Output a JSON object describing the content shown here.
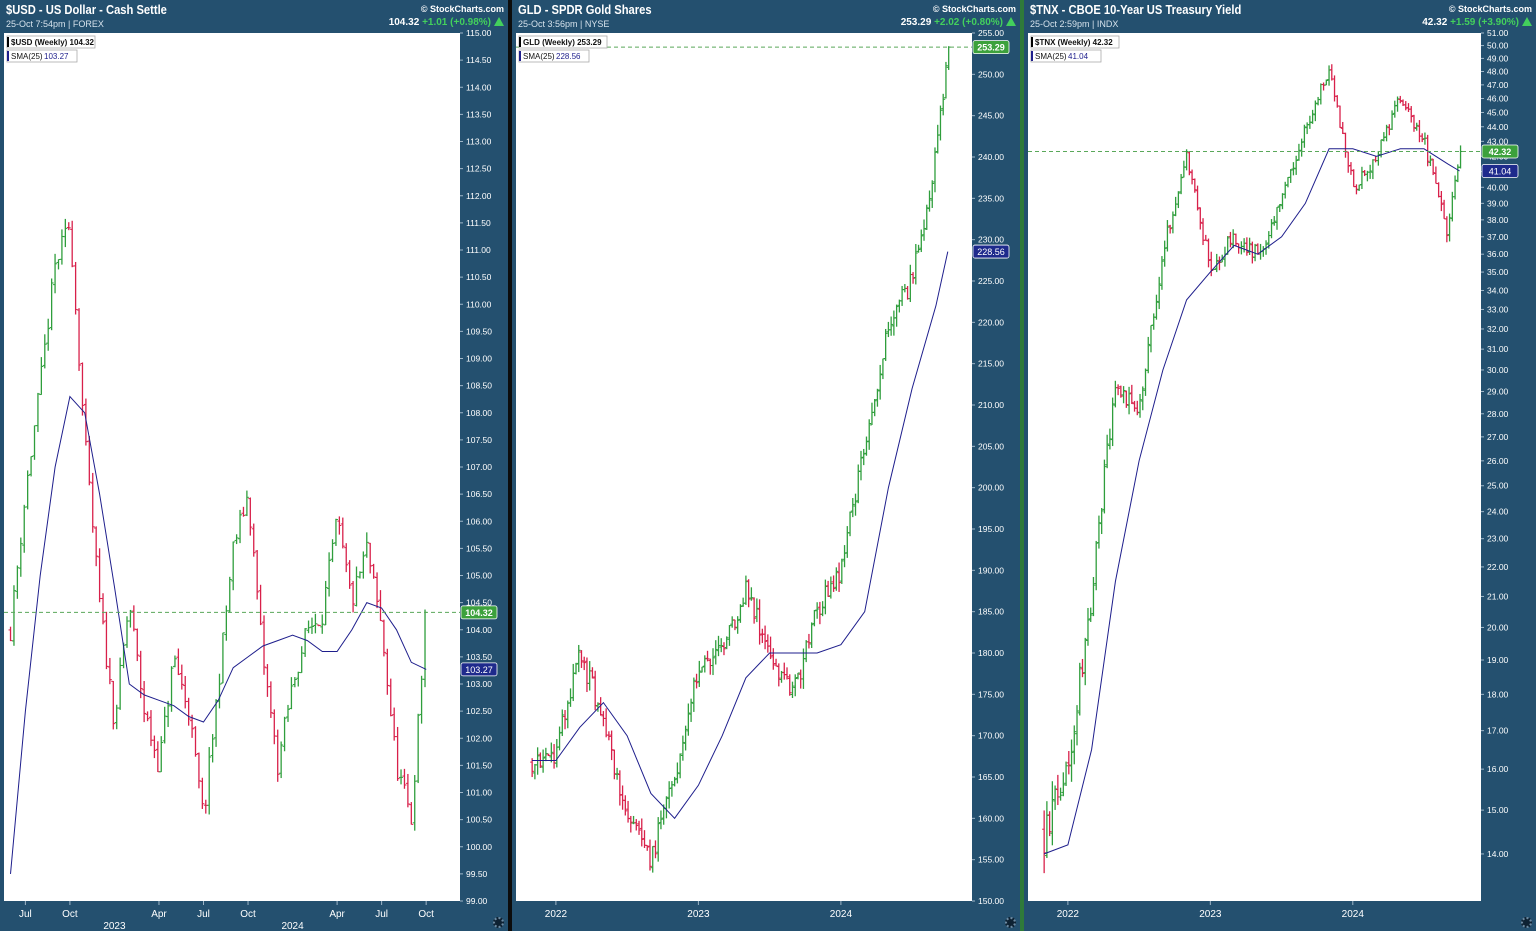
{
  "charts": [
    {
      "title": "$USD - US Dollar - Cash Settle",
      "subtitle": "25-Oct 7:54pm | FOREX",
      "brand": "© StockCharts.com",
      "last": "104.32",
      "change": "+1.01 (+0.98%)",
      "legend_price": "$USD (Weekly) 104.32",
      "legend_sma_label": "SMA(25)",
      "legend_sma_value": "103.27",
      "price_tag": "104.32",
      "sma_tag": "103.27",
      "colors": {
        "up": "#2f9e3c",
        "down": "#d8204a",
        "sma": "#1e1e8c",
        "price_tag": "#3ca13c",
        "sma_tag": "#1e2a8c"
      }
    },
    {
      "title": "GLD - SPDR Gold Shares",
      "subtitle": "25-Oct 3:56pm | NYSE",
      "brand": "© StockCharts.com",
      "last": "253.29",
      "change": "+2.02 (+0.80%)",
      "legend_price": "GLD (Weekly) 253.29",
      "legend_sma_label": "SMA(25)",
      "legend_sma_value": "228.56",
      "price_tag": "253.29",
      "sma_tag": "228.56",
      "colors": {
        "up": "#2f9e3c",
        "down": "#d8204a",
        "sma": "#1e1e8c",
        "price_tag": "#3ca13c",
        "sma_tag": "#1e2a8c"
      }
    },
    {
      "title": "$TNX - CBOE 10-Year US Treasury Yield",
      "subtitle": "25-Oct 2:59pm | INDX",
      "brand": "© StockCharts.com",
      "last": "42.32",
      "change": "+1.59 (+3.90%)",
      "legend_price": "$TNX (Weekly) 42.32",
      "legend_sma_label": "SMA(25)",
      "legend_sma_value": "41.04",
      "price_tag": "42.32",
      "sma_tag": "41.04",
      "colors": {
        "up": "#2f9e3c",
        "down": "#d8204a",
        "sma": "#1e1e8c",
        "price_tag": "#3ca13c",
        "sma_tag": "#1e2a8c"
      }
    }
  ],
  "chart_data": [
    {
      "type": "line",
      "title": "$USD - US Dollar - Cash Settle",
      "series": [
        {
          "name": "$USD (Weekly)",
          "x": [
            "2022-06",
            "2022-07",
            "2022-08",
            "2022-09",
            "2022-10",
            "2022-11",
            "2022-12",
            "2023-01",
            "2023-02",
            "2023-03",
            "2023-04",
            "2023-05",
            "2023-06",
            "2023-07",
            "2023-08",
            "2023-09",
            "2023-10",
            "2023-11",
            "2023-12",
            "2024-01",
            "2024-02",
            "2024-03",
            "2024-04",
            "2024-05",
            "2024-06",
            "2024-07",
            "2024-08",
            "2024-09",
            "2024-10"
          ],
          "values": [
            104.0,
            106.5,
            108.5,
            110.7,
            111.5,
            107.5,
            104.5,
            102.3,
            104.5,
            102.5,
            101.5,
            103.5,
            102.5,
            100.5,
            103.0,
            105.5,
            106.5,
            103.5,
            101.5,
            103.0,
            104.0,
            104.3,
            106.0,
            104.5,
            105.5,
            104.0,
            101.5,
            100.5,
            104.32
          ]
        },
        {
          "name": "SMA(25)",
          "x": [
            "2022-06",
            "2022-07",
            "2022-08",
            "2022-09",
            "2022-10",
            "2022-11",
            "2022-12",
            "2023-01",
            "2023-02",
            "2023-03",
            "2023-04",
            "2023-05",
            "2023-06",
            "2023-07",
            "2023-08",
            "2023-09",
            "2023-10",
            "2023-11",
            "2023-12",
            "2024-01",
            "2024-02",
            "2024-03",
            "2024-04",
            "2024-05",
            "2024-06",
            "2024-07",
            "2024-08",
            "2024-09",
            "2024-10"
          ],
          "values": [
            99.5,
            102.5,
            105.0,
            107.0,
            108.3,
            108.0,
            106.5,
            104.8,
            103.0,
            102.8,
            102.7,
            102.6,
            102.4,
            102.3,
            102.7,
            103.3,
            103.5,
            103.7,
            103.8,
            103.9,
            103.8,
            103.6,
            103.6,
            104.0,
            104.5,
            104.4,
            104.0,
            103.4,
            103.27
          ]
        }
      ],
      "x_tick_labels": [
        "Jul",
        "Oct",
        "Apr",
        "Jul",
        "Oct",
        "Apr",
        "Jul",
        "Oct"
      ],
      "x_year_labels": [
        "2023",
        "2024"
      ],
      "y_tick_labels": [
        "115.00",
        "114.50",
        "114.00",
        "113.50",
        "113.00",
        "112.50",
        "112.00",
        "111.50",
        "111.00",
        "110.50",
        "110.00",
        "109.50",
        "109.00",
        "108.50",
        "108.00",
        "107.50",
        "107.00",
        "106.50",
        "106.00",
        "105.50",
        "105.00",
        "104.50",
        "104.00",
        "103.50",
        "103.00",
        "102.50",
        "102.00",
        "101.50",
        "101.00",
        "100.50",
        "100.00",
        "99.50",
        "99.00"
      ],
      "ylim": [
        99.0,
        115.0
      ],
      "grid": false,
      "legend": "top-left"
    },
    {
      "type": "line",
      "title": "GLD - SPDR Gold Shares",
      "series": [
        {
          "name": "GLD (Weekly)",
          "x": [
            "2021-11",
            "2022-01",
            "2022-03",
            "2022-05",
            "2022-07",
            "2022-09",
            "2022-11",
            "2023-01",
            "2023-03",
            "2023-05",
            "2023-07",
            "2023-09",
            "2023-11",
            "2024-01",
            "2024-03",
            "2024-05",
            "2024-07",
            "2024-09",
            "2024-10"
          ],
          "values": [
            167,
            168,
            180,
            172,
            160,
            155,
            165,
            178,
            180,
            188,
            180,
            175,
            185,
            190,
            205,
            220,
            225,
            240,
            253.29
          ]
        },
        {
          "name": "SMA(25)",
          "x": [
            "2021-11",
            "2022-01",
            "2022-03",
            "2022-05",
            "2022-07",
            "2022-09",
            "2022-11",
            "2023-01",
            "2023-03",
            "2023-05",
            "2023-07",
            "2023-09",
            "2023-11",
            "2024-01",
            "2024-03",
            "2024-05",
            "2024-07",
            "2024-09",
            "2024-10"
          ],
          "values": [
            167,
            167,
            171,
            174,
            170,
            163,
            160,
            164,
            170,
            177,
            180,
            180,
            180,
            181,
            185,
            200,
            212,
            222,
            228.56
          ]
        }
      ],
      "x_tick_labels": [
        "2022",
        "2023",
        "2024"
      ],
      "y_tick_labels": [
        "255.00",
        "250.00",
        "245.00",
        "240.00",
        "235.00",
        "230.00",
        "225.00",
        "220.00",
        "215.00",
        "210.00",
        "205.00",
        "200.00",
        "195.00",
        "190.00",
        "185.00",
        "180.00",
        "175.00",
        "170.00",
        "165.00",
        "160.00",
        "155.00",
        "150.00"
      ],
      "ylim": [
        150,
        255
      ],
      "grid": false,
      "legend": "top-left"
    },
    {
      "type": "line",
      "title": "$TNX - CBOE 10-Year US Treasury Yield",
      "series": [
        {
          "name": "$TNX (Weekly)",
          "x": [
            "2021-11",
            "2022-01",
            "2022-03",
            "2022-05",
            "2022-07",
            "2022-09",
            "2022-11",
            "2023-01",
            "2023-03",
            "2023-05",
            "2023-07",
            "2023-09",
            "2023-11",
            "2024-01",
            "2024-03",
            "2024-05",
            "2024-07",
            "2024-09",
            "2024-10"
          ],
          "values": [
            14.5,
            16.0,
            21.0,
            29.0,
            28.0,
            36.0,
            42.0,
            35.0,
            37.0,
            36.0,
            39.0,
            44.0,
            48.0,
            40.0,
            42.0,
            46.0,
            43.0,
            37.0,
            42.32
          ]
        },
        {
          "name": "SMA(25)",
          "x": [
            "2021-11",
            "2022-01",
            "2022-03",
            "2022-05",
            "2022-07",
            "2022-09",
            "2022-11",
            "2023-01",
            "2023-03",
            "2023-05",
            "2023-07",
            "2023-09",
            "2023-11",
            "2024-01",
            "2024-03",
            "2024-05",
            "2024-07",
            "2024-09",
            "2024-10"
          ],
          "values": [
            14.0,
            14.2,
            16.5,
            21.5,
            26.0,
            30.0,
            33.5,
            35.0,
            36.5,
            36.0,
            37.0,
            39.0,
            42.5,
            42.5,
            42.0,
            42.5,
            42.5,
            41.5,
            41.04
          ]
        }
      ],
      "x_tick_labels": [
        "2022",
        "2023",
        "2024"
      ],
      "y_tick_labels": [
        "51.00",
        "50.00",
        "49.00",
        "48.00",
        "47.00",
        "46.00",
        "45.00",
        "44.00",
        "43.00",
        "42.00",
        "41.00",
        "40.00",
        "39.00",
        "38.00",
        "37.00",
        "36.00",
        "35.00",
        "34.00",
        "33.00",
        "32.00",
        "31.00",
        "30.00",
        "29.00",
        "28.00",
        "27.00",
        "26.00",
        "25.00",
        "24.00",
        "23.00",
        "22.00",
        "21.00",
        "20.00",
        "19.00",
        "18.00",
        "17.00",
        "16.00",
        "15.00",
        "14.00"
      ],
      "y_scale": "log",
      "ylim": [
        13.0,
        51.0
      ],
      "grid": false,
      "legend": "top-left"
    }
  ]
}
